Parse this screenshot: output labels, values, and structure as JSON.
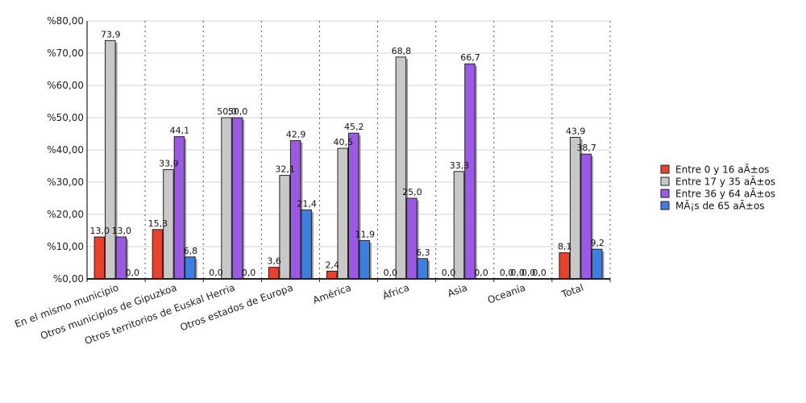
{
  "chart_data": {
    "type": "bar",
    "categories": [
      "En el mismo municipio",
      "Otros municipios de Gipuzkoa",
      "Otros territorios de Euskal Herria",
      "Otros estados de Europa",
      "América",
      "África",
      "Asia",
      "Oceanía",
      "Total"
    ],
    "series": [
      {
        "name": "Entre 0 y 16 aÃ±os",
        "color": "#e8412c",
        "values": [
          13.0,
          15.3,
          0.0,
          3.6,
          2.4,
          0.0,
          0.0,
          0.0,
          8.1
        ],
        "labels": [
          "13,0",
          "15,3",
          "0,0",
          "3,6",
          "2,4",
          "0,0",
          "0,0",
          "0,0",
          "8,1"
        ]
      },
      {
        "name": "Entre 17 y 35 aÃ±os",
        "color": "#c8c8c8",
        "values": [
          73.9,
          33.9,
          50.0,
          32.1,
          40.5,
          68.8,
          33.3,
          0.0,
          43.9
        ],
        "labels": [
          "73,9",
          "33,9",
          "50,0",
          "32,1",
          "40,5",
          "68,8",
          "33,3",
          "0,0",
          "43,9"
        ]
      },
      {
        "name": "Entre 36 y 64 aÃ±os",
        "color": "#9b59e6",
        "values": [
          13.0,
          44.1,
          50.0,
          42.9,
          45.2,
          25.0,
          66.7,
          0.0,
          38.7
        ],
        "labels": [
          "13,0",
          "44,1",
          "50,0",
          "42,9",
          "45,2",
          "25,0",
          "66,7",
          "0,0",
          "38,7"
        ]
      },
      {
        "name": "MÃ¡s de 65 aÃ±os",
        "color": "#3d7fe0",
        "values": [
          0.0,
          6.8,
          0.0,
          21.4,
          11.9,
          6.3,
          0.0,
          0.0,
          9.2
        ],
        "labels": [
          "0,0",
          "6,8",
          "0,0",
          "21,4",
          "11,9",
          "6,3",
          "0,0",
          "0,0",
          "9,2"
        ]
      }
    ],
    "y_ticks": [
      0,
      10,
      20,
      30,
      40,
      50,
      60,
      70,
      80
    ],
    "y_tick_labels": [
      "%0,00",
      "%10,00",
      "%20,00",
      "%30,00",
      "%40,00",
      "%50,00",
      "%60,00",
      "%70,00",
      "%80,00"
    ],
    "ylim": [
      0,
      80
    ],
    "grid": true,
    "legend_position": "right"
  }
}
